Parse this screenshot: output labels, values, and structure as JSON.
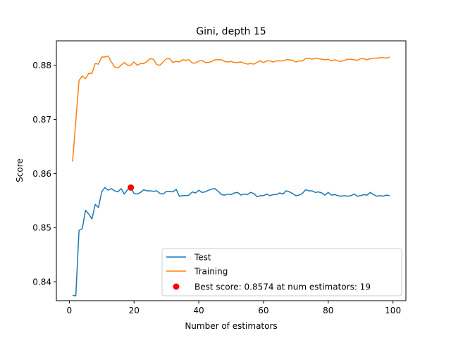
{
  "chart_data": {
    "type": "line",
    "title": "Gini, depth 15",
    "xlabel": "Number of estimators",
    "ylabel": "Score",
    "xlim": [
      -4,
      104
    ],
    "ylim": [
      0.8365,
      0.8845
    ],
    "xticks": [
      0,
      20,
      40,
      60,
      80,
      100
    ],
    "yticks": [
      0.84,
      0.85,
      0.86,
      0.87,
      0.88
    ],
    "ytick_labels": [
      "0.84",
      "0.85",
      "0.86",
      "0.87",
      "0.88"
    ],
    "legend_position": "lower-right",
    "series": [
      {
        "name": "Test",
        "color": "#1f77b4",
        "x": [
          1,
          2,
          3,
          4,
          5,
          6,
          7,
          8,
          9,
          10,
          11,
          12,
          13,
          14,
          15,
          16,
          17,
          18,
          19,
          20,
          21,
          22,
          23,
          24,
          25,
          26,
          27,
          28,
          29,
          30,
          31,
          32,
          33,
          34,
          35,
          36,
          37,
          38,
          39,
          40,
          41,
          42,
          43,
          44,
          45,
          46,
          47,
          48,
          49,
          50,
          51,
          52,
          53,
          54,
          55,
          56,
          57,
          58,
          59,
          60,
          61,
          62,
          63,
          64,
          65,
          66,
          67,
          68,
          69,
          70,
          71,
          72,
          73,
          74,
          75,
          76,
          77,
          78,
          79,
          80,
          81,
          82,
          83,
          84,
          85,
          86,
          87,
          88,
          89,
          90,
          91,
          92,
          93,
          94,
          95,
          96,
          97,
          98,
          99
        ],
        "values": [
          0.8375,
          0.8374,
          0.8495,
          0.8498,
          0.8532,
          0.8525,
          0.8516,
          0.8543,
          0.8537,
          0.8566,
          0.8574,
          0.8569,
          0.8572,
          0.8568,
          0.8566,
          0.8572,
          0.8562,
          0.857,
          0.8574,
          0.8563,
          0.8562,
          0.8565,
          0.857,
          0.8568,
          0.8568,
          0.8567,
          0.8568,
          0.8563,
          0.8562,
          0.8567,
          0.8567,
          0.8566,
          0.8571,
          0.8558,
          0.8559,
          0.8559,
          0.856,
          0.8566,
          0.8564,
          0.8569,
          0.8565,
          0.8566,
          0.8569,
          0.8571,
          0.8572,
          0.8567,
          0.8561,
          0.856,
          0.8562,
          0.8561,
          0.8564,
          0.8565,
          0.856,
          0.8562,
          0.8561,
          0.8565,
          0.8563,
          0.8557,
          0.8559,
          0.8559,
          0.8562,
          0.8559,
          0.8561,
          0.8561,
          0.8564,
          0.8562,
          0.8568,
          0.8566,
          0.8563,
          0.8559,
          0.856,
          0.8563,
          0.857,
          0.8568,
          0.8568,
          0.8565,
          0.8566,
          0.8564,
          0.856,
          0.8565,
          0.856,
          0.8561,
          0.8559,
          0.8558,
          0.8559,
          0.8558,
          0.8559,
          0.8562,
          0.8558,
          0.8559,
          0.8561,
          0.856,
          0.8565,
          0.8561,
          0.8558,
          0.8559,
          0.8558,
          0.856,
          0.8559
        ]
      },
      {
        "name": "Training",
        "color": "#ff7f0e",
        "x": [
          1,
          2,
          3,
          4,
          5,
          6,
          7,
          8,
          9,
          10,
          11,
          12,
          13,
          14,
          15,
          16,
          17,
          18,
          19,
          20,
          21,
          22,
          23,
          24,
          25,
          26,
          27,
          28,
          29,
          30,
          31,
          32,
          33,
          34,
          35,
          36,
          37,
          38,
          39,
          40,
          41,
          42,
          43,
          44,
          45,
          46,
          47,
          48,
          49,
          50,
          51,
          52,
          53,
          54,
          55,
          56,
          57,
          58,
          59,
          60,
          61,
          62,
          63,
          64,
          65,
          66,
          67,
          68,
          69,
          70,
          71,
          72,
          73,
          74,
          75,
          76,
          77,
          78,
          79,
          80,
          81,
          82,
          83,
          84,
          85,
          86,
          87,
          88,
          89,
          90,
          91,
          92,
          93,
          94,
          95,
          96,
          97,
          98,
          99
        ],
        "values": [
          0.8622,
          0.8697,
          0.8772,
          0.878,
          0.8775,
          0.8785,
          0.8785,
          0.8803,
          0.8802,
          0.8815,
          0.8815,
          0.8817,
          0.8806,
          0.8797,
          0.8795,
          0.88,
          0.8805,
          0.88,
          0.88,
          0.8806,
          0.88,
          0.8803,
          0.8803,
          0.8807,
          0.8812,
          0.8811,
          0.8801,
          0.88,
          0.8806,
          0.8812,
          0.8812,
          0.8805,
          0.8807,
          0.8806,
          0.881,
          0.8809,
          0.881,
          0.8804,
          0.8804,
          0.8808,
          0.8809,
          0.8805,
          0.8805,
          0.8807,
          0.881,
          0.881,
          0.881,
          0.8807,
          0.8806,
          0.8807,
          0.8805,
          0.8805,
          0.8806,
          0.8804,
          0.8802,
          0.8803,
          0.8802,
          0.8805,
          0.8808,
          0.8805,
          0.8808,
          0.8808,
          0.8806,
          0.8808,
          0.8808,
          0.8808,
          0.881,
          0.881,
          0.8809,
          0.8806,
          0.8808,
          0.8808,
          0.8812,
          0.8813,
          0.8811,
          0.8813,
          0.8812,
          0.8811,
          0.881,
          0.8811,
          0.8808,
          0.881,
          0.8808,
          0.8807,
          0.8809,
          0.8811,
          0.8811,
          0.881,
          0.8809,
          0.8812,
          0.8812,
          0.881,
          0.8812,
          0.8813,
          0.8813,
          0.8814,
          0.8814,
          0.8813,
          0.8815
        ]
      }
    ],
    "best_point": {
      "label": "Best score: 0.8574 at num estimators: 19",
      "x": 19,
      "y": 0.8574,
      "color": "#ff0000"
    }
  }
}
